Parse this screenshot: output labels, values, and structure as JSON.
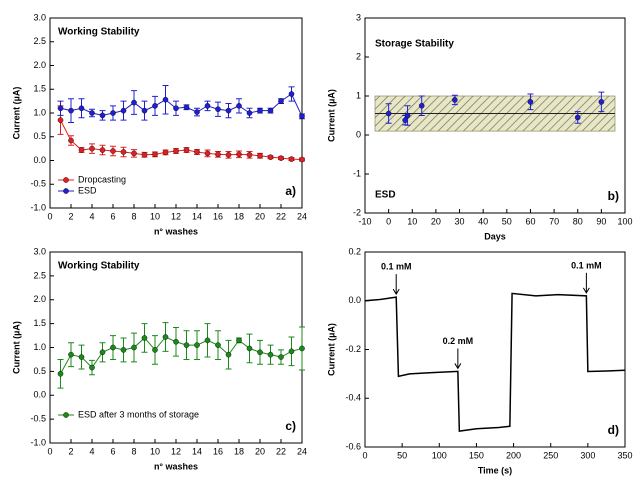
{
  "chart_data": [
    {
      "type": "line",
      "xlabel": "n° washes",
      "ylabel": "Current (µA)",
      "annotations": [
        "Working Stability"
      ],
      "panel_label": "a)",
      "x": [
        1,
        2,
        3,
        4,
        5,
        6,
        7,
        8,
        9,
        10,
        11,
        12,
        13,
        14,
        15,
        16,
        17,
        18,
        19,
        20,
        21,
        22,
        23,
        24
      ],
      "series": [
        {
          "name": "Dropcasting",
          "color": "#e02020",
          "values": [
            0.85,
            0.42,
            0.22,
            0.25,
            0.22,
            0.2,
            0.18,
            0.15,
            0.12,
            0.13,
            0.17,
            0.2,
            0.22,
            0.18,
            0.15,
            0.13,
            0.12,
            0.13,
            0.12,
            0.1,
            0.07,
            0.05,
            0.03,
            0.02
          ],
          "errors": [
            0.3,
            0.1,
            0.05,
            0.1,
            0.1,
            0.1,
            0.1,
            0.08,
            0.05,
            0.05,
            0.05,
            0.05,
            0.05,
            0.05,
            0.07,
            0.06,
            0.07,
            0.07,
            0.07,
            0.05,
            0.03,
            0.03,
            0.03,
            0.03
          ]
        },
        {
          "name": "ESD",
          "color": "#2020d0",
          "values": [
            1.1,
            1.05,
            1.1,
            1.0,
            0.95,
            1.0,
            1.05,
            1.22,
            1.05,
            1.15,
            1.28,
            1.1,
            1.12,
            1.02,
            1.15,
            1.08,
            1.05,
            1.15,
            1.0,
            1.05,
            1.05,
            1.25,
            1.4,
            0.93
          ],
          "errors": [
            0.15,
            0.25,
            0.2,
            0.08,
            0.1,
            0.15,
            0.2,
            0.25,
            0.2,
            0.2,
            0.3,
            0.15,
            0.05,
            0.08,
            0.1,
            0.15,
            0.15,
            0.15,
            0.1,
            0.05,
            0.05,
            0.05,
            0.15,
            0.05
          ]
        }
      ],
      "xlim": [
        0,
        24
      ],
      "xticks": [
        0,
        2,
        4,
        6,
        8,
        10,
        12,
        14,
        16,
        18,
        20,
        22,
        24
      ],
      "ylim": [
        -1,
        3
      ],
      "yticks": [
        {
          "value": -1,
          "label": "-1.0"
        },
        -0.5,
        {
          "value": 0,
          "label": "0.0"
        },
        0.5,
        {
          "value": 1,
          "label": "1.0"
        },
        1.5,
        {
          "value": 2,
          "label": "2.0"
        },
        2.5,
        {
          "value": 3,
          "label": "3.0"
        }
      ],
      "legend": "lower left"
    },
    {
      "type": "scatter",
      "xlabel": "Days",
      "ylabel": "Current (µA)",
      "annotations": [
        "Storage Stability",
        "ESD"
      ],
      "panel_label": "b)",
      "x": [
        0,
        7,
        8,
        14,
        28,
        60,
        80,
        90
      ],
      "values": [
        0.55,
        0.38,
        0.5,
        0.75,
        0.9,
        0.85,
        0.45,
        0.85
      ],
      "errors": [
        0.25,
        0.12,
        0.25,
        0.25,
        0.12,
        0.2,
        0.15,
        0.25
      ],
      "color": "#2020d0",
      "band": [
        0.1,
        1.0
      ],
      "mean": 0.55,
      "xlim": [
        -10,
        100
      ],
      "xticks": [
        -10,
        0,
        10,
        20,
        30,
        40,
        50,
        60,
        70,
        80,
        90,
        100
      ],
      "ylim": [
        -2,
        3
      ],
      "yticks": [
        -2,
        -1,
        0,
        1,
        2,
        3
      ]
    },
    {
      "type": "line",
      "xlabel": "n° washes",
      "ylabel": "Current (µA)",
      "annotations": [
        "Working Stability"
      ],
      "panel_label": "c)",
      "x": [
        1,
        2,
        3,
        4,
        5,
        6,
        7,
        8,
        9,
        10,
        11,
        12,
        13,
        14,
        15,
        16,
        17,
        18,
        19,
        20,
        21,
        22,
        23,
        24
      ],
      "series": [
        {
          "name": "ESD after 3 months of storage",
          "color": "#1a8a1a",
          "values": [
            0.45,
            0.85,
            0.8,
            0.58,
            0.9,
            1.0,
            0.95,
            1.0,
            1.2,
            0.95,
            1.22,
            1.12,
            1.05,
            1.05,
            1.15,
            1.05,
            0.85,
            1.15,
            0.98,
            0.9,
            0.85,
            0.8,
            0.92,
            0.98
          ],
          "errors": [
            0.3,
            0.25,
            0.25,
            0.15,
            0.2,
            0.25,
            0.25,
            0.3,
            0.3,
            0.3,
            0.3,
            0.3,
            0.3,
            0.3,
            0.35,
            0.3,
            0.3,
            0.05,
            0.3,
            0.25,
            0.2,
            0.15,
            0.3,
            0.45
          ]
        }
      ],
      "xlim": [
        0,
        24
      ],
      "xticks": [
        0,
        2,
        4,
        6,
        8,
        10,
        12,
        14,
        16,
        18,
        20,
        22,
        24
      ],
      "ylim": [
        -1,
        3
      ],
      "yticks": [
        {
          "value": -1,
          "label": "-1.0"
        },
        -0.5,
        {
          "value": 0,
          "label": "0.0"
        },
        0.5,
        {
          "value": 1,
          "label": "1.0"
        },
        1.5,
        {
          "value": 2,
          "label": "2.0"
        },
        2.5,
        {
          "value": 3,
          "label": "3.0"
        }
      ],
      "legend": "lower left"
    },
    {
      "type": "line",
      "xlabel": "Time (s)",
      "ylabel": "Current (µA)",
      "panel_label": "d)",
      "x": [
        0,
        20,
        42,
        45,
        60,
        90,
        125,
        127,
        150,
        180,
        195,
        198,
        230,
        260,
        298,
        300,
        325,
        350
      ],
      "values": [
        0.0,
        0.005,
        0.015,
        -0.31,
        -0.3,
        -0.295,
        -0.29,
        -0.535,
        -0.525,
        -0.52,
        -0.515,
        0.03,
        0.02,
        0.025,
        0.02,
        -0.29,
        -0.288,
        -0.285
      ],
      "color": "#000000",
      "arrows": [
        {
          "text": "0.1 mM",
          "x": 42
        },
        {
          "text": "0.2 mM",
          "x": 125
        },
        {
          "text": "0.1 mM",
          "x": 298
        }
      ],
      "xlim": [
        0,
        350
      ],
      "xticks": [
        0,
        50,
        100,
        150,
        200,
        250,
        300,
        350
      ],
      "ylim": [
        -0.6,
        0.2
      ],
      "yticks": [
        -0.6,
        -0.4,
        -0.2,
        {
          "value": 0,
          "label": "0.0"
        },
        0.2
      ]
    }
  ]
}
